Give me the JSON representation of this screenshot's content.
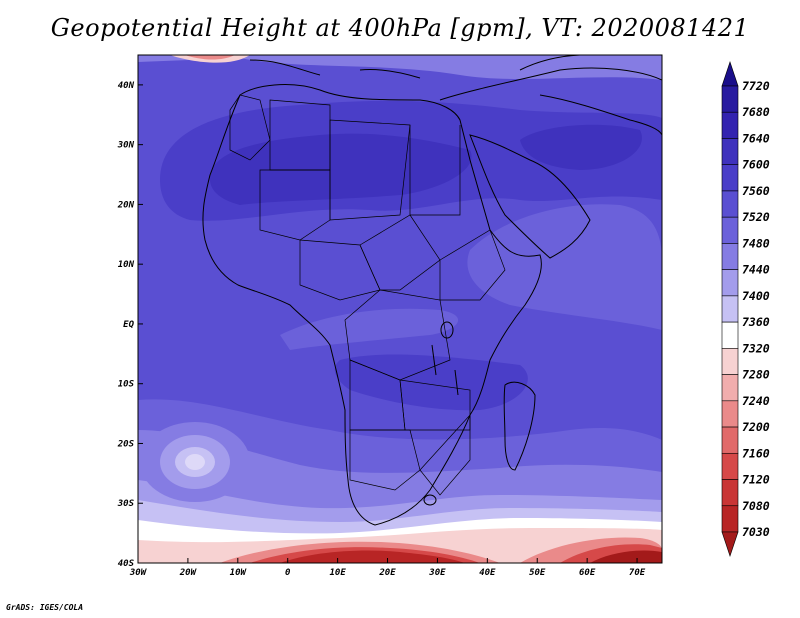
{
  "title": "Geopotential Height at 400hPa [gpm], VT: 2020081421",
  "credit": "GrADS: IGES/COLA",
  "map": {
    "x_ticks": [
      "30W",
      "20W",
      "10W",
      "0",
      "10E",
      "20E",
      "30E",
      "40E",
      "50E",
      "60E",
      "70E"
    ],
    "y_ticks": [
      "40N",
      "30N",
      "20N",
      "10N",
      "EQ",
      "10S",
      "20S",
      "30S",
      "40S"
    ],
    "lon_range": [
      -30,
      75
    ],
    "lat_range": [
      -40,
      45
    ]
  },
  "colorbar": {
    "levels": [
      "7720",
      "7680",
      "7640",
      "7600",
      "7560",
      "7520",
      "7480",
      "7440",
      "7400",
      "7360",
      "7320",
      "7280",
      "7240",
      "7200",
      "7160",
      "7120",
      "7080",
      "7030"
    ],
    "colors": [
      "#1a0e8a",
      "#281ba0",
      "#3323b0",
      "#3f32bd",
      "#4a3ec8",
      "#5a4fd2",
      "#6b61da",
      "#857ce3",
      "#a39cec",
      "#c6c1f4",
      "#ffffff",
      "#f7d2d2",
      "#f1adad",
      "#ea8a8a",
      "#e16a6a",
      "#d64949",
      "#c93535",
      "#b82525",
      "#a31a1a"
    ]
  }
}
